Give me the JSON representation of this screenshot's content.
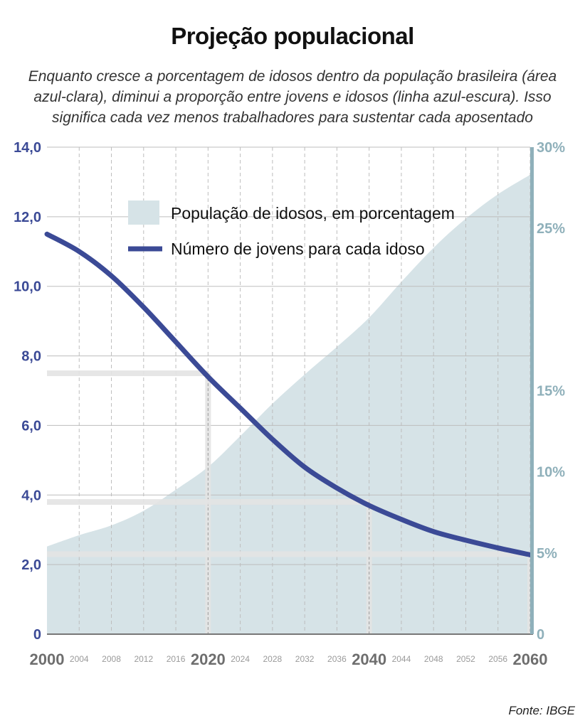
{
  "title": "Projeção populacional",
  "subtitle": "Enquanto cresce a porcentagem de idosos dentro da população brasileira (área azul-clara), diminui a proporção entre jovens e idosos (linha azul-escura). Isso significa cada vez menos trabalhadores para sustentar cada aposentado",
  "source": "Fonte: IBGE",
  "colors": {
    "area": "#d6e3e7",
    "line": "#3b4a96",
    "left_axis": "#3b4a96",
    "right_axis": "#8fb0ba",
    "grid": "#bdbdbd",
    "highlight": "#e3e3e3"
  },
  "chart_data": {
    "type": "line",
    "x": [
      2000,
      2004,
      2008,
      2012,
      2016,
      2020,
      2024,
      2028,
      2032,
      2036,
      2040,
      2044,
      2048,
      2052,
      2056,
      2060
    ],
    "x_tick_labels": [
      "2000",
      "2004",
      "2008",
      "2012",
      "2016",
      "2020",
      "2024",
      "2028",
      "2032",
      "2036",
      "2040",
      "2044",
      "2048",
      "2052",
      "2056",
      "2060"
    ],
    "major_x_ticks": [
      "2000",
      "2020",
      "2040",
      "2060"
    ],
    "xlim": [
      2000,
      2060
    ],
    "y_left": {
      "ylim": [
        0,
        14
      ],
      "tick_values": [
        0,
        2,
        4,
        6,
        8,
        10,
        12,
        14
      ],
      "tick_labels": [
        "0",
        "2,0",
        "4,0",
        "6,0",
        "8,0",
        "10,0",
        "12,0",
        "14,0"
      ]
    },
    "y_right": {
      "ylim": [
        0,
        30
      ],
      "tick_values": [
        0,
        5,
        10,
        15,
        25,
        30
      ],
      "tick_labels": [
        "0",
        "5%",
        "10%",
        "15%",
        "25%",
        "30%"
      ]
    },
    "series": [
      {
        "name": "População de idosos, em porcentagem",
        "kind": "area",
        "axis": "right",
        "values": [
          5.4,
          6.1,
          6.7,
          7.6,
          8.9,
          10.3,
          12.2,
          14.2,
          16.0,
          17.7,
          19.5,
          21.7,
          23.8,
          25.6,
          27.1,
          28.3
        ]
      },
      {
        "name": "Número de jovens para cada idoso",
        "kind": "line",
        "axis": "left",
        "values": [
          11.5,
          11.0,
          10.3,
          9.4,
          8.4,
          7.4,
          6.5,
          5.6,
          4.8,
          4.2,
          3.7,
          3.3,
          2.95,
          2.7,
          2.48,
          2.28
        ]
      }
    ],
    "highlights": [
      {
        "x": 2020,
        "y_left": 7.5
      },
      {
        "x": 2040,
        "y_left": 3.8
      },
      {
        "x": 2060,
        "y_left": 2.3
      }
    ],
    "grid": true,
    "legend_position": "top-center"
  }
}
